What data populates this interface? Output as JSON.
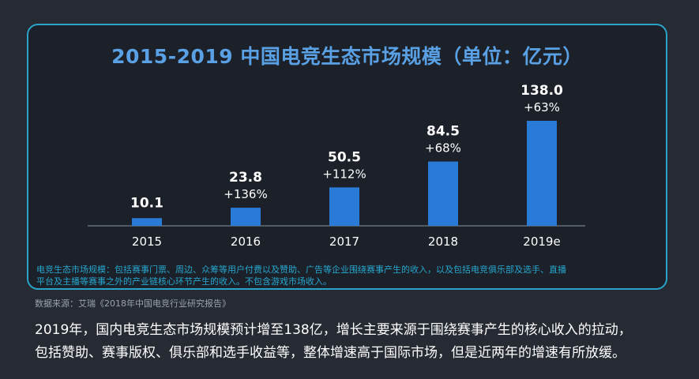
{
  "chart_data": {
    "type": "bar",
    "title": "2015-2019 中国电竞生态市场规模（单位：亿元）",
    "categories": [
      "2015",
      "2016",
      "2017",
      "2018",
      "2019e"
    ],
    "values": [
      10.1,
      23.8,
      50.5,
      84.5,
      138.0
    ],
    "value_labels": [
      "10.1",
      "23.8",
      "50.5",
      "84.5",
      "138.0"
    ],
    "growth_labels": [
      "",
      "+136%",
      "+112%",
      "+68%",
      "+63%"
    ],
    "xlabel": "",
    "ylabel": "",
    "ylim": [
      0,
      138.0
    ],
    "grid": false,
    "bar_color": "#2a7ad8"
  },
  "footnote_lines": [
    "电竞生态市场规模：包括赛事门票、周边、众筹等用户付费以及赞助、广告等企业围绕赛事产生的收入，以及包括电竞俱乐部及选手、直播",
    "平台及主播等赛事之外的产业链核心环节产生的收入。不包含游戏市场收入。"
  ],
  "source": "数据来源：艾瑞《2018年中国电竞行业研究报告》",
  "caption_lines": [
    "2019年，国内电竞生态市场规模预计增至138亿，增长主要来源于围绕赛事产生的核心收入的拉动，",
    "包括赞助、赛事版权、俱乐部和选手收益等，整体增速高于国际市场，但是近两年的增速有所放缓。"
  ],
  "colors": {
    "panel_border": "#2aa3c8",
    "title": "#5aa0e4",
    "footnote": "#27a7cf",
    "text": "#ffffff"
  }
}
